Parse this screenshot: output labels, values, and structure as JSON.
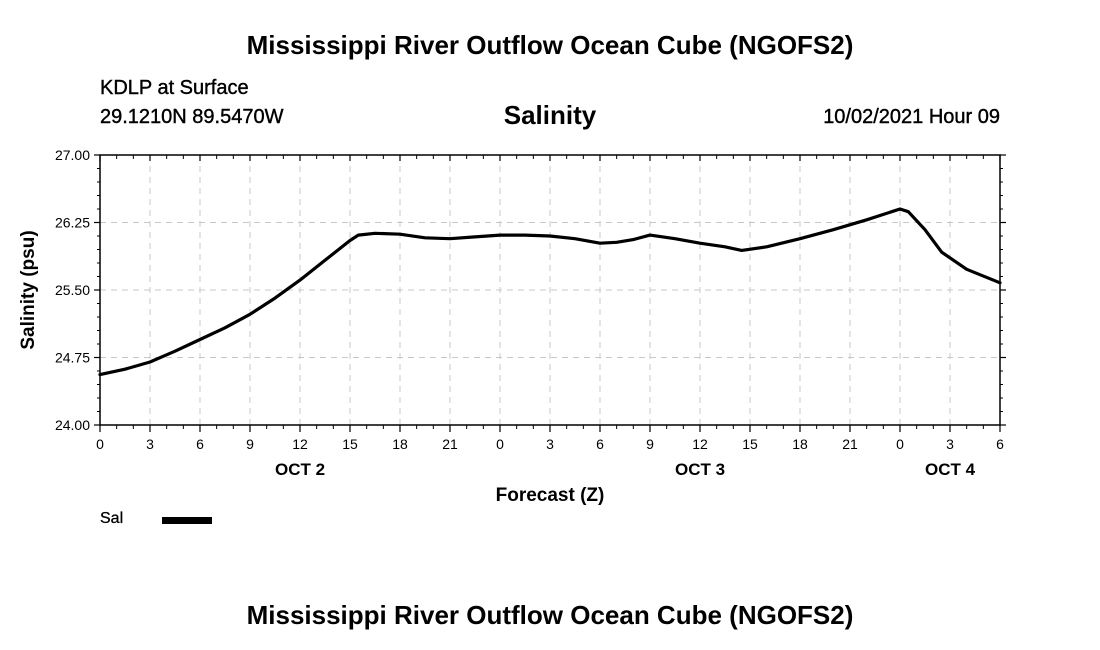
{
  "header": {
    "title": "Mississippi River Outflow Ocean Cube (NGOFS2)",
    "station": "KDLP at Surface",
    "coords": "29.1210N  89.5470W",
    "variable": "Salinity",
    "datetime": "10/02/2021 Hour 09"
  },
  "footer": {
    "title": "Mississippi River Outflow Ocean Cube (NGOFS2)"
  },
  "legend": {
    "label": "Sal",
    "color": "#000000"
  },
  "chart_data": {
    "type": "line",
    "title": "Salinity",
    "xlabel": "Forecast (Z)",
    "ylabel": "Salinity (psu)",
    "ylim": [
      24.0,
      27.0
    ],
    "xlim": [
      0,
      54
    ],
    "x_unit": "forecast hour since OCT 2 00Z",
    "yticks": [
      "24.00",
      "24.75",
      "25.50",
      "26.25",
      "27.00"
    ],
    "xticks": [
      "0",
      "3",
      "6",
      "9",
      "12",
      "15",
      "18",
      "21",
      "0",
      "3",
      "6",
      "9",
      "12",
      "15",
      "18",
      "21",
      "0",
      "3",
      "6"
    ],
    "day_labels": [
      {
        "label": "OCT 2",
        "hour": 12
      },
      {
        "label": "OCT 3",
        "hour": 36
      },
      {
        "label": "OCT 4",
        "hour": 51
      }
    ],
    "grid": true,
    "legend_position": "bottom-left",
    "series": [
      {
        "name": "Sal",
        "color": "#000000",
        "x": [
          0,
          1.5,
          3,
          4.5,
          6,
          7.5,
          9,
          10.5,
          12,
          13.5,
          15,
          15.5,
          16.5,
          18,
          19.5,
          21,
          22.5,
          24,
          25.5,
          27,
          28.5,
          30,
          31,
          32,
          33,
          34.5,
          36,
          37.5,
          38.5,
          40,
          42,
          44,
          46,
          47.5,
          48,
          48.5,
          49.5,
          50.5,
          52,
          54
        ],
        "y": [
          24.56,
          24.62,
          24.7,
          24.82,
          24.95,
          25.08,
          25.23,
          25.41,
          25.61,
          25.83,
          26.05,
          26.11,
          26.13,
          26.12,
          26.08,
          26.07,
          26.09,
          26.11,
          26.11,
          26.1,
          26.07,
          26.02,
          26.03,
          26.06,
          26.11,
          26.07,
          26.02,
          25.98,
          25.94,
          25.98,
          26.07,
          26.17,
          26.28,
          26.37,
          26.4,
          26.37,
          26.17,
          25.92,
          25.73,
          25.58
        ]
      }
    ]
  }
}
